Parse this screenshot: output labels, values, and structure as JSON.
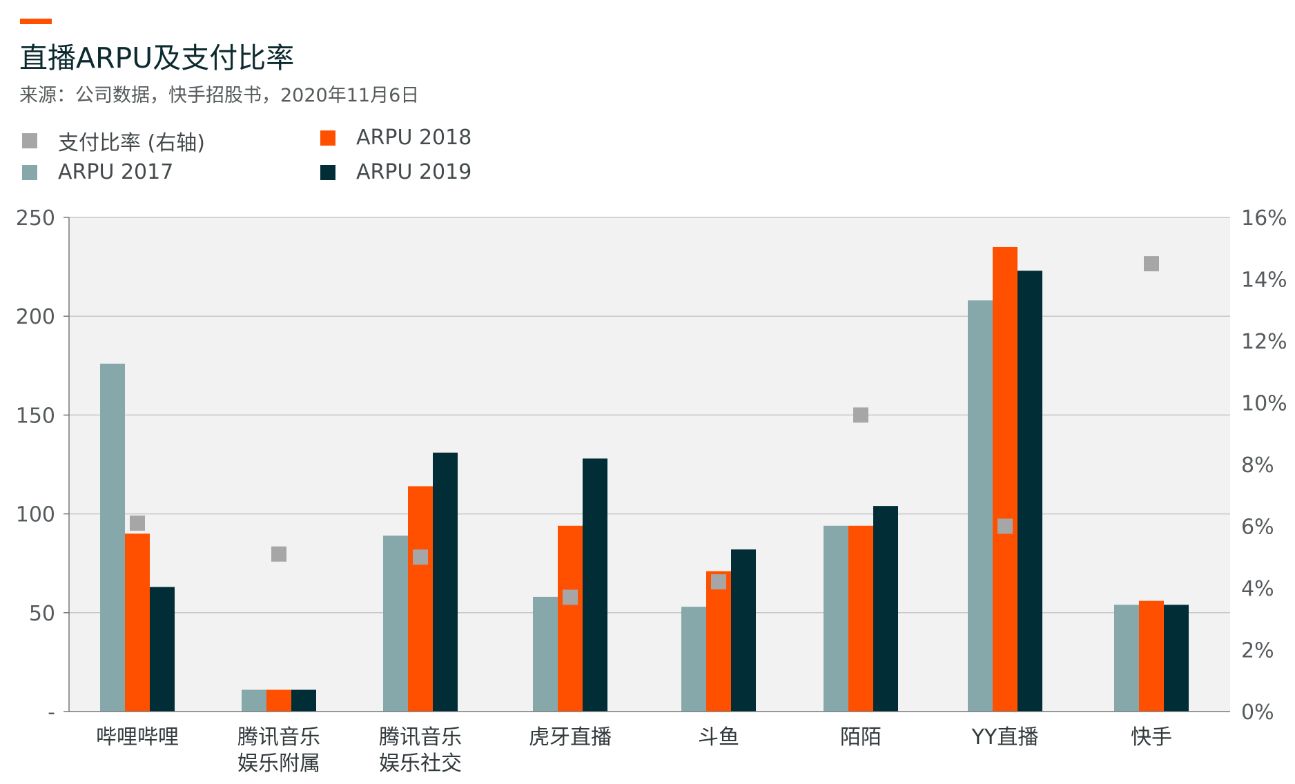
{
  "header": {
    "title": "直播ARPU及支付比率",
    "source": "来源：公司数据，快手招股书，2020年11月6日"
  },
  "colors": {
    "accent": "#ff5000",
    "plot_bg": "#f2f2f2",
    "grid": "#c8c8c8",
    "axis": "#777777",
    "ratio_marker": "#a6a6a6",
    "arpu_2017": "#86a8ab",
    "arpu_2018": "#ff5000",
    "arpu_2019": "#002d36"
  },
  "chart_data": {
    "type": "bar",
    "title": "直播ARPU及支付比率",
    "categories": [
      [
        "哔哩哔哩"
      ],
      [
        "腾讯音乐",
        "娱乐附属"
      ],
      [
        "腾讯音乐",
        "娱乐社交"
      ],
      [
        "虎牙直播"
      ],
      [
        "斗鱼"
      ],
      [
        "陌陌"
      ],
      [
        "YY直播"
      ],
      [
        "快手"
      ]
    ],
    "series": [
      {
        "name": "ARPU 2017",
        "color": "#86a8ab",
        "values": [
          176,
          11,
          89,
          58,
          53,
          94,
          208,
          54
        ]
      },
      {
        "name": "ARPU 2018",
        "color": "#ff5000",
        "values": [
          90,
          11,
          114,
          94,
          71,
          94,
          235,
          56
        ]
      },
      {
        "name": "ARPU 2019",
        "color": "#002d36",
        "values": [
          63,
          11,
          131,
          128,
          82,
          104,
          223,
          54
        ]
      }
    ],
    "ratio_series": {
      "name": "支付比率 (右轴)",
      "color": "#a6a6a6",
      "values": [
        6.1,
        5.1,
        5.0,
        3.7,
        4.2,
        9.6,
        6.0,
        14.5
      ]
    },
    "y_left": {
      "lim": [
        0,
        250
      ],
      "ticks": [
        0,
        50,
        100,
        150,
        200,
        250
      ],
      "tick_labels": [
        "-",
        "50",
        "100",
        "150",
        "200",
        "250"
      ]
    },
    "y_right": {
      "lim": [
        0,
        16
      ],
      "ticks": [
        0,
        2,
        4,
        6,
        8,
        10,
        12,
        14,
        16
      ],
      "tick_labels": [
        "0%",
        "2%",
        "4%",
        "6%",
        "8%",
        "10%",
        "12%",
        "14%",
        "16%"
      ]
    },
    "grid": true,
    "legend_placement": "top-left",
    "legend": [
      "支付比率 (右轴)",
      "ARPU 2017",
      "ARPU 2018",
      "ARPU 2019"
    ]
  }
}
